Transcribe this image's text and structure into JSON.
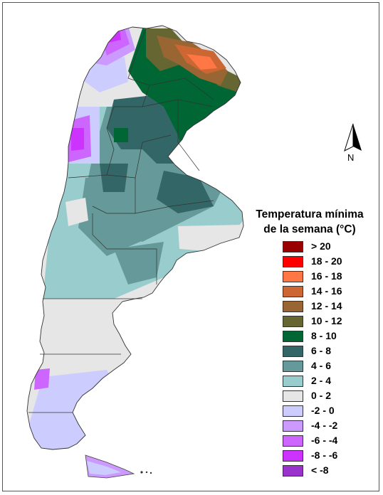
{
  "legend": {
    "title_line1": "Temperatura mínima",
    "title_line2": "de la semana (°C)",
    "items": [
      {
        "label": "> 20",
        "color": "#990000"
      },
      {
        "label": "18 - 20",
        "color": "#ff0000"
      },
      {
        "label": "16 - 18",
        "color": "#ff7744"
      },
      {
        "label": "14 - 16",
        "color": "#cc6633"
      },
      {
        "label": "12 - 14",
        "color": "#996633"
      },
      {
        "label": "10 - 12",
        "color": "#666633"
      },
      {
        "label": "8 - 10",
        "color": "#006633"
      },
      {
        "label": "6 - 8",
        "color": "#336666"
      },
      {
        "label": "4 - 6",
        "color": "#669999"
      },
      {
        "label": "2 - 4",
        "color": "#99cccc"
      },
      {
        "label": "0 - 2",
        "color": "#e6e6e6"
      },
      {
        "label": "-2 - 0",
        "color": "#ccccff"
      },
      {
        "label": "-4 - -2",
        "color": "#cc99ff"
      },
      {
        "label": "-6 - -4",
        "color": "#cc66ff"
      },
      {
        "label": "-8 - -6",
        "color": "#cc33ff"
      },
      {
        "label": "< -8",
        "color": "#9933cc"
      }
    ]
  },
  "compass": {
    "label": "N",
    "icon": "north-arrow-icon"
  }
}
